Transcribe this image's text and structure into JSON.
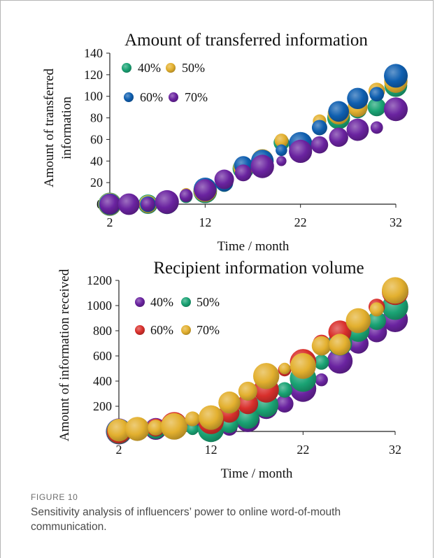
{
  "figure": {
    "label": "FIGURE 10",
    "caption": "Sensitivity analysis of influencers’ power to online word-of-mouth communication."
  },
  "colors": {
    "40%": "#1aa374",
    "50%": "#e3b02f",
    "60%": "#0f5fb0",
    "70%": "#6a23a0",
    "red": "#d9302c",
    "purple": "#6a23a0",
    "green": "#1aa374",
    "gold": "#e3b02f"
  },
  "chart_data": [
    {
      "type": "scatter",
      "title": "Amount of transferred information",
      "xlabel": "Time / month",
      "ylabel": "Amount of transferred information",
      "xlim": [
        2,
        32
      ],
      "ylim": [
        0,
        140
      ],
      "xticks": [
        "2",
        "12",
        "22",
        "32"
      ],
      "yticks": [
        "0",
        "20",
        "40",
        "60",
        "80",
        "100",
        "120",
        "140"
      ],
      "legend_position": "top-left",
      "series": [
        {
          "name": "40%",
          "color": "#1aa374",
          "x": [
            2,
            4,
            6,
            8,
            10,
            12,
            14,
            16,
            18,
            20,
            22,
            24,
            26,
            28,
            30,
            32
          ],
          "y": [
            0,
            0,
            0,
            1,
            7,
            12,
            18,
            33,
            38,
            57,
            54,
            75,
            80,
            88,
            90,
            110
          ]
        },
        {
          "name": "50%",
          "color": "#e3b02f",
          "x": [
            2,
            4,
            6,
            8,
            10,
            12,
            14,
            16,
            18,
            20,
            22,
            24,
            26,
            28,
            30,
            32
          ],
          "y": [
            0,
            0,
            0,
            2,
            10,
            13,
            21,
            34,
            41,
            59,
            55,
            77,
            84,
            90,
            105,
            114
          ]
        },
        {
          "name": "60%",
          "color": "#0f5fb0",
          "x": [
            2,
            4,
            6,
            8,
            10,
            12,
            14,
            16,
            18,
            20,
            22,
            24,
            26,
            28,
            30,
            32
          ],
          "y": [
            0,
            0,
            0,
            2,
            9,
            14,
            20,
            36,
            40,
            50,
            56,
            71,
            86,
            98,
            102,
            119
          ]
        },
        {
          "name": "70%",
          "color": "#6a23a0",
          "x": [
            2,
            4,
            6,
            8,
            10,
            12,
            14,
            16,
            18,
            20,
            22,
            24,
            26,
            28,
            30,
            32
          ],
          "y": [
            0,
            0,
            0,
            2,
            8,
            13,
            23,
            29,
            35,
            40,
            49,
            55,
            62,
            69,
            71,
            88
          ]
        }
      ]
    },
    {
      "type": "scatter",
      "title": "Recipient information volume",
      "xlabel": "Time / month",
      "ylabel": "Amount of information received",
      "xlim": [
        2,
        32
      ],
      "ylim": [
        0,
        1200
      ],
      "xticks": [
        "2",
        "12",
        "22",
        "32"
      ],
      "yticks": [
        "0",
        "200",
        "400",
        "600",
        "800",
        "1000",
        "1200"
      ],
      "legend_position": "top-left",
      "series": [
        {
          "name": "40%",
          "color": "#6a23a0",
          "x": [
            2,
            4,
            6,
            8,
            10,
            12,
            14,
            16,
            18,
            20,
            22,
            24,
            26,
            28,
            30,
            32
          ],
          "y": [
            0,
            10,
            20,
            40,
            50,
            60,
            30,
            90,
            190,
            220,
            340,
            410,
            560,
            700,
            790,
            890
          ]
        },
        {
          "name": "50%",
          "color": "#1aa374",
          "x": [
            2,
            4,
            6,
            8,
            10,
            12,
            14,
            16,
            18,
            20,
            22,
            24,
            26,
            28,
            30,
            32
          ],
          "y": [
            0,
            10,
            20,
            40,
            20,
            20,
            60,
            110,
            210,
            330,
            420,
            550,
            700,
            800,
            880,
            990
          ]
        },
        {
          "name": "60%",
          "color": "#d9302c",
          "x": [
            2,
            4,
            6,
            8,
            10,
            12,
            14,
            16,
            18,
            20,
            22,
            24,
            26,
            28,
            30,
            32
          ],
          "y": [
            0,
            20,
            30,
            50,
            100,
            80,
            150,
            220,
            330,
            490,
            550,
            700,
            790,
            880,
            990,
            1110
          ]
        },
        {
          "name": "70%",
          "color": "#e3b02f",
          "x": [
            2,
            4,
            6,
            8,
            10,
            12,
            14,
            16,
            18,
            20,
            22,
            24,
            26,
            28,
            30,
            32
          ],
          "y": [
            10,
            20,
            30,
            40,
            100,
            110,
            230,
            320,
            440,
            500,
            520,
            680,
            690,
            880,
            970,
            1120
          ]
        }
      ]
    }
  ]
}
